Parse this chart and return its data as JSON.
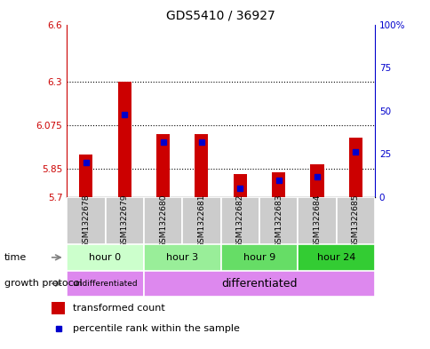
{
  "title": "GDS5410 / 36927",
  "samples": [
    "GSM1322678",
    "GSM1322679",
    "GSM1322680",
    "GSM1322681",
    "GSM1322682",
    "GSM1322683",
    "GSM1322684",
    "GSM1322685"
  ],
  "transformed_counts": [
    5.92,
    6.3,
    6.03,
    6.03,
    5.82,
    5.83,
    5.87,
    6.01
  ],
  "percentile_ranks": [
    20,
    48,
    32,
    32,
    5,
    10,
    12,
    26
  ],
  "y_min": 5.7,
  "y_max": 6.6,
  "y_ticks": [
    5.7,
    5.85,
    6.075,
    6.3,
    6.6
  ],
  "y_tick_labels": [
    "5.7",
    "5.85",
    "6.075",
    "6.3",
    "6.6"
  ],
  "right_y_ticks": [
    0,
    25,
    50,
    75,
    100
  ],
  "right_y_tick_labels": [
    "0",
    "25",
    "50",
    "75",
    "100%"
  ],
  "left_axis_color": "#cc0000",
  "right_axis_color": "#0000cc",
  "bar_color_red": "#cc0000",
  "bar_color_blue": "#0000cc",
  "time_groups": [
    {
      "label": "hour 0",
      "start": 0,
      "end": 2,
      "color": "#ccffcc"
    },
    {
      "label": "hour 3",
      "start": 2,
      "end": 4,
      "color": "#99ee99"
    },
    {
      "label": "hour 9",
      "start": 4,
      "end": 6,
      "color": "#66dd66"
    },
    {
      "label": "hour 24",
      "start": 6,
      "end": 8,
      "color": "#33cc33"
    }
  ],
  "growth_groups": [
    {
      "label": "undifferentiated",
      "start": 0,
      "end": 2,
      "color": "#dd88ee",
      "fontsize": 6.5
    },
    {
      "label": "differentiated",
      "start": 2,
      "end": 8,
      "color": "#dd88ee",
      "fontsize": 9
    }
  ],
  "sample_bg_color": "#cccccc",
  "legend_red_label": "transformed count",
  "legend_blue_label": "percentile rank within the sample",
  "time_label": "time",
  "growth_label": "growth protocol",
  "bar_width": 0.35,
  "fig_width": 4.85,
  "fig_height": 3.93,
  "fig_dpi": 100
}
